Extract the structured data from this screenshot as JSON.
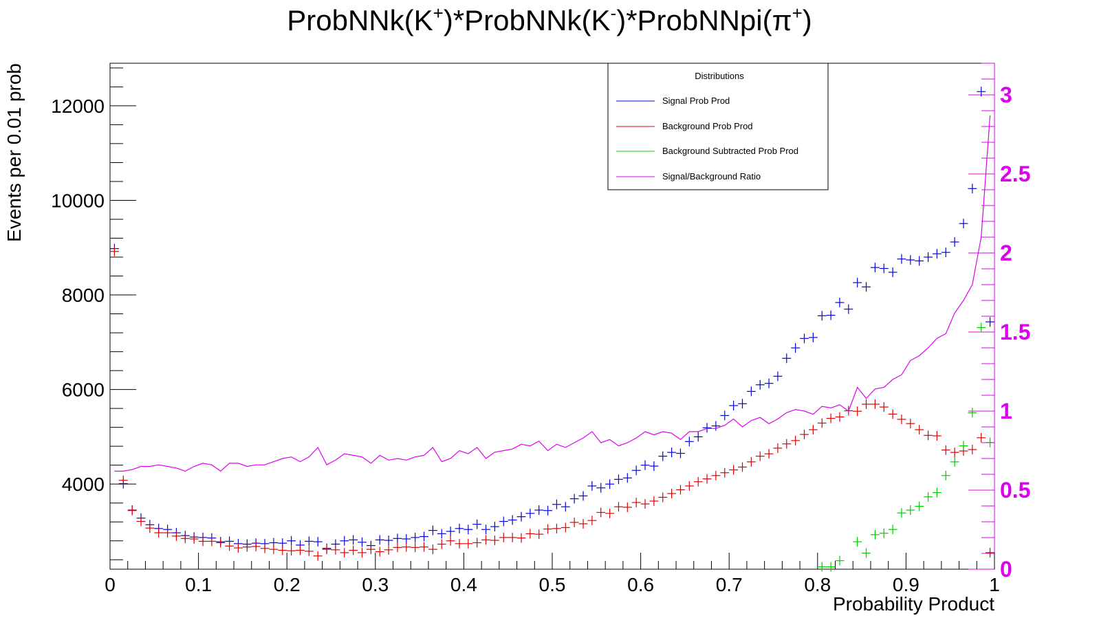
{
  "chart_data": {
    "type": "scatter",
    "title": {
      "base1": "ProbNNk(K",
      "sup1": "+",
      "base2": ")*ProbNNk(K",
      "sup2": "-",
      "base3": ")*ProbNNpi(π",
      "sup3": "+",
      "base4": ")"
    },
    "xlabel": "Probability Product",
    "ylabel": "Events per 0.01 prob",
    "xlim": [
      0,
      1
    ],
    "ylim": [
      2200,
      12900
    ],
    "y2lim": [
      0,
      3.2
    ],
    "x_ticks": [
      "0",
      "0.1",
      "0.2",
      "0.3",
      "0.4",
      "0.5",
      "0.6",
      "0.7",
      "0.8",
      "0.9",
      "1"
    ],
    "y_ticks": [
      "4000",
      "6000",
      "8000",
      "10000",
      "12000"
    ],
    "y2_ticks": [
      "0",
      "0.5",
      "1",
      "1.5",
      "2",
      "2.5",
      "3"
    ],
    "grid": false,
    "legend": {
      "title": "Distributions",
      "position": "top-right",
      "entries": [
        "Signal Prob Prod",
        "Background Prob Prod",
        "Background Subtracted Prob Prod",
        "Signal/Background Ratio"
      ]
    },
    "colors": {
      "signal": "#0000dd",
      "background": "#dd0000",
      "subtracted": "#00cc00",
      "ratio": "#dd00ee"
    },
    "x": [
      0.005,
      0.015,
      0.025,
      0.035,
      0.045,
      0.055,
      0.065,
      0.075,
      0.085,
      0.095,
      0.105,
      0.115,
      0.125,
      0.135,
      0.145,
      0.155,
      0.165,
      0.175,
      0.185,
      0.195,
      0.205,
      0.215,
      0.225,
      0.235,
      0.245,
      0.255,
      0.265,
      0.275,
      0.285,
      0.295,
      0.305,
      0.315,
      0.325,
      0.335,
      0.345,
      0.355,
      0.365,
      0.375,
      0.385,
      0.395,
      0.405,
      0.415,
      0.425,
      0.435,
      0.445,
      0.455,
      0.465,
      0.475,
      0.485,
      0.495,
      0.505,
      0.515,
      0.525,
      0.535,
      0.545,
      0.555,
      0.565,
      0.575,
      0.585,
      0.595,
      0.605,
      0.615,
      0.625,
      0.635,
      0.645,
      0.655,
      0.665,
      0.675,
      0.685,
      0.695,
      0.705,
      0.715,
      0.725,
      0.735,
      0.745,
      0.755,
      0.765,
      0.775,
      0.785,
      0.795,
      0.805,
      0.815,
      0.825,
      0.835,
      0.845,
      0.855,
      0.865,
      0.875,
      0.885,
      0.895,
      0.905,
      0.915,
      0.925,
      0.935,
      0.945,
      0.955,
      0.965,
      0.975,
      0.985,
      0.995
    ],
    "series": [
      {
        "name": "Signal Prob Prod",
        "role": "signal",
        "axis": "left",
        "values": [
          8980,
          4010,
          3450,
          3280,
          3140,
          3060,
          3040,
          2970,
          2910,
          2880,
          2870,
          2860,
          2780,
          2790,
          2740,
          2730,
          2750,
          2740,
          2760,
          2750,
          2800,
          2710,
          2790,
          2780,
          2640,
          2730,
          2800,
          2820,
          2770,
          2700,
          2820,
          2810,
          2850,
          2840,
          2870,
          2890,
          3020,
          2950,
          3000,
          3060,
          3040,
          3150,
          3040,
          3100,
          3210,
          3240,
          3310,
          3380,
          3450,
          3440,
          3570,
          3520,
          3690,
          3750,
          3960,
          3920,
          4000,
          4100,
          4130,
          4290,
          4400,
          4380,
          4590,
          4670,
          4650,
          4900,
          5000,
          5190,
          5230,
          5450,
          5660,
          5700,
          5960,
          6100,
          6130,
          6280,
          6660,
          6880,
          7080,
          7100,
          7560,
          7570,
          7840,
          7700,
          8260,
          8170,
          8580,
          8560,
          8480,
          8760,
          8740,
          8720,
          8800,
          8870,
          8900,
          9120,
          9510,
          10250,
          12300,
          7430
        ]
      },
      {
        "name": "Background Prob Prod",
        "role": "background",
        "axis": "left",
        "values": [
          8920,
          4080,
          3440,
          3210,
          3070,
          2970,
          2970,
          2900,
          2850,
          2840,
          2790,
          2790,
          2760,
          2690,
          2650,
          2670,
          2680,
          2640,
          2620,
          2600,
          2590,
          2600,
          2580,
          2480,
          2620,
          2610,
          2550,
          2600,
          2550,
          2620,
          2570,
          2610,
          2660,
          2670,
          2660,
          2670,
          2620,
          2730,
          2800,
          2740,
          2740,
          2760,
          2820,
          2810,
          2870,
          2870,
          2860,
          2950,
          2940,
          3050,
          3060,
          3080,
          3190,
          3160,
          3230,
          3400,
          3380,
          3520,
          3510,
          3610,
          3580,
          3640,
          3720,
          3800,
          3880,
          3960,
          4050,
          4110,
          4180,
          4240,
          4300,
          4360,
          4470,
          4590,
          4640,
          4760,
          4850,
          4920,
          5050,
          5150,
          5290,
          5390,
          5420,
          5550,
          5540,
          5690,
          5690,
          5630,
          5480,
          5370,
          5280,
          5150,
          5030,
          5020,
          4720,
          4670,
          4700,
          4730,
          4980,
          2550
        ]
      },
      {
        "name": "Background Subtracted Prob Prod",
        "role": "subtracted",
        "axis": "left",
        "values": [
          null,
          null,
          null,
          null,
          null,
          null,
          null,
          null,
          null,
          null,
          null,
          null,
          null,
          null,
          null,
          null,
          null,
          null,
          null,
          null,
          null,
          null,
          null,
          null,
          null,
          null,
          null,
          null,
          null,
          null,
          null,
          null,
          null,
          null,
          null,
          null,
          null,
          null,
          null,
          null,
          null,
          null,
          null,
          null,
          null,
          null,
          null,
          null,
          null,
          null,
          null,
          null,
          null,
          null,
          null,
          null,
          null,
          null,
          null,
          null,
          null,
          null,
          null,
          null,
          null,
          null,
          null,
          null,
          null,
          null,
          null,
          null,
          null,
          null,
          null,
          null,
          null,
          null,
          null,
          null,
          2250,
          2250,
          2380,
          null,
          2780,
          2540,
          2930,
          2960,
          3040,
          3390,
          3450,
          3530,
          3730,
          3820,
          4180,
          4470,
          4810,
          5510,
          7310,
          4880
        ]
      },
      {
        "name": "Signal/Background Ratio",
        "role": "ratio",
        "axis": "right",
        "values": [
          0.62,
          0.62,
          0.63,
          0.65,
          0.65,
          0.66,
          0.65,
          0.64,
          0.62,
          0.65,
          0.67,
          0.66,
          0.62,
          0.67,
          0.67,
          0.65,
          0.66,
          0.66,
          0.68,
          0.7,
          0.71,
          0.68,
          0.71,
          0.77,
          0.66,
          0.69,
          0.73,
          0.72,
          0.71,
          0.67,
          0.72,
          0.69,
          0.7,
          0.69,
          0.71,
          0.72,
          0.77,
          0.68,
          0.7,
          0.75,
          0.73,
          0.77,
          0.7,
          0.74,
          0.75,
          0.76,
          0.79,
          0.78,
          0.81,
          0.75,
          0.79,
          0.77,
          0.8,
          0.83,
          0.87,
          0.8,
          0.82,
          0.78,
          0.8,
          0.83,
          0.87,
          0.85,
          0.87,
          0.86,
          0.82,
          0.87,
          0.87,
          0.89,
          0.89,
          0.91,
          0.95,
          0.9,
          0.94,
          0.96,
          0.92,
          0.95,
          0.99,
          1.01,
          1.0,
          0.98,
          1.03,
          1.02,
          1.04,
          1.0,
          1.15,
          1.08,
          1.14,
          1.15,
          1.2,
          1.23,
          1.32,
          1.35,
          1.4,
          1.46,
          1.49,
          1.62,
          1.7,
          1.8,
          2.1,
          2.87
        ]
      }
    ]
  }
}
